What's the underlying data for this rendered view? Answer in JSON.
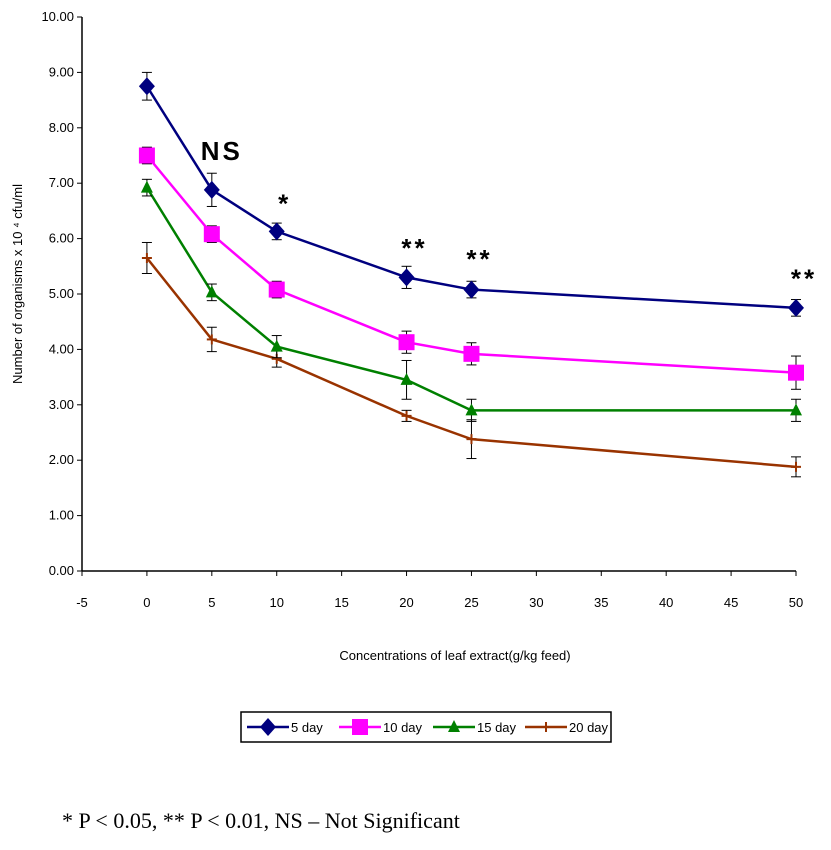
{
  "chart_data": {
    "type": "line",
    "xlabel": "Concentrations of leaf extract(g/kg feed)",
    "ylabel": "Number of organisms x 10 ⁴ cfu/ml",
    "xlim": [
      -5,
      50
    ],
    "ylim": [
      0,
      10
    ],
    "x_ticks": [
      "-5",
      "0",
      "5",
      "10",
      "15",
      "20",
      "25",
      "30",
      "35",
      "40",
      "45",
      "50"
    ],
    "y_ticks": [
      "0.00",
      "1.00",
      "2.00",
      "3.00",
      "4.00",
      "5.00",
      "6.00",
      "7.00",
      "8.00",
      "9.00",
      "10.00"
    ],
    "x": [
      0,
      5,
      10,
      20,
      25,
      50
    ],
    "series": [
      {
        "name": "5 day",
        "color": "#00007f",
        "marker": "diamond",
        "values": [
          8.75,
          6.88,
          6.13,
          5.3,
          5.08,
          4.75
        ],
        "errors": [
          0.25,
          0.3,
          0.15,
          0.2,
          0.15,
          0.15
        ]
      },
      {
        "name": "10 day",
        "color": "#ff00ff",
        "marker": "square",
        "values": [
          7.5,
          6.08,
          5.08,
          4.13,
          3.92,
          3.58
        ],
        "errors": [
          0.15,
          0.15,
          0.15,
          0.2,
          0.2,
          0.3
        ]
      },
      {
        "name": "15 day",
        "color": "#008000",
        "marker": "triangle",
        "values": [
          6.92,
          5.03,
          4.05,
          3.45,
          2.9,
          2.9
        ],
        "errors": [
          0.15,
          0.15,
          0.2,
          0.35,
          0.2,
          0.2
        ]
      },
      {
        "name": "20 day",
        "color": "#993300",
        "marker": "plus",
        "values": [
          5.65,
          4.18,
          3.83,
          2.8,
          2.38,
          1.88
        ],
        "errors": [
          0.28,
          0.22,
          0.15,
          0.1,
          0.35,
          0.18
        ]
      }
    ],
    "annotations": [
      {
        "text": "NS",
        "x": 5,
        "y": 7.6
      },
      {
        "text": "*",
        "x": 10,
        "y": 6.65
      },
      {
        "text": "**",
        "x": 20,
        "y": 5.85
      },
      {
        "text": "**",
        "x": 25,
        "y": 5.65
      },
      {
        "text": "**",
        "x": 50,
        "y": 5.3
      }
    ],
    "legend_position": "bottom",
    "grid": false
  },
  "footnote": "* P < 0.05, ** P < 0.01, NS – Not Significant"
}
